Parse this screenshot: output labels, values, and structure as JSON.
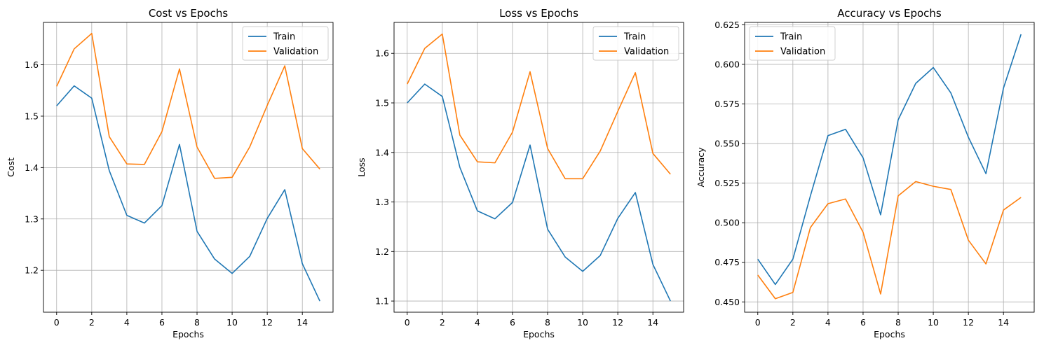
{
  "chart_data": [
    {
      "type": "line",
      "title": "Cost vs Epochs",
      "xlabel": "Epochs",
      "ylabel": "Cost",
      "xlim": [
        -0.75,
        15.75
      ],
      "ylim": [
        1.1185,
        1.6825
      ],
      "xticks": [
        0,
        2,
        4,
        6,
        8,
        10,
        12,
        14
      ],
      "yticks": [
        1.2,
        1.3,
        1.4,
        1.5,
        1.6
      ],
      "ytick_labels": [
        "1.2",
        "1.3",
        "1.4",
        "1.5",
        "1.6"
      ],
      "grid": true,
      "legend": "upper right",
      "x": [
        0,
        1,
        2,
        3,
        4,
        5,
        6,
        7,
        8,
        9,
        10,
        11,
        12,
        13,
        14,
        15
      ],
      "series": [
        {
          "name": "Train",
          "color": "#1f77b4",
          "values": [
            1.52,
            1.559,
            1.535,
            1.394,
            1.307,
            1.292,
            1.326,
            1.445,
            1.276,
            1.222,
            1.194,
            1.227,
            1.301,
            1.357,
            1.213,
            1.14
          ]
        },
        {
          "name": "Validation",
          "color": "#ff7f0e",
          "values": [
            1.558,
            1.631,
            1.661,
            1.46,
            1.407,
            1.406,
            1.47,
            1.592,
            1.44,
            1.379,
            1.381,
            1.44,
            1.521,
            1.598,
            1.437,
            1.397
          ]
        }
      ]
    },
    {
      "type": "line",
      "title": "Loss vs Epochs",
      "xlabel": "Epochs",
      "ylabel": "Loss",
      "xlim": [
        -0.75,
        15.75
      ],
      "ylim": [
        1.0775,
        1.6625
      ],
      "xticks": [
        0,
        2,
        4,
        6,
        8,
        10,
        12,
        14
      ],
      "yticks": [
        1.1,
        1.2,
        1.3,
        1.4,
        1.5,
        1.6
      ],
      "ytick_labels": [
        "1.1",
        "1.2",
        "1.3",
        "1.4",
        "1.5",
        "1.6"
      ],
      "grid": true,
      "legend": "upper right",
      "x": [
        0,
        1,
        2,
        3,
        4,
        5,
        6,
        7,
        8,
        9,
        10,
        11,
        12,
        13,
        14,
        15
      ],
      "series": [
        {
          "name": "Train",
          "color": "#1f77b4",
          "values": [
            1.5,
            1.538,
            1.513,
            1.37,
            1.282,
            1.266,
            1.299,
            1.415,
            1.245,
            1.189,
            1.16,
            1.192,
            1.267,
            1.319,
            1.174,
            1.1
          ]
        },
        {
          "name": "Validation",
          "color": "#ff7f0e",
          "values": [
            1.538,
            1.61,
            1.639,
            1.435,
            1.381,
            1.379,
            1.441,
            1.563,
            1.408,
            1.347,
            1.347,
            1.403,
            1.483,
            1.561,
            1.398,
            1.356
          ]
        }
      ]
    },
    {
      "type": "line",
      "title": "Accuracy vs Epochs",
      "xlabel": "Epochs",
      "ylabel": "Accuracy",
      "xlim": [
        -0.75,
        15.75
      ],
      "ylim": [
        0.4435,
        0.6265
      ],
      "xticks": [
        0,
        2,
        4,
        6,
        8,
        10,
        12,
        14
      ],
      "yticks": [
        0.45,
        0.475,
        0.5,
        0.525,
        0.55,
        0.575,
        0.6,
        0.625
      ],
      "ytick_labels": [
        "0.450",
        "0.475",
        "0.500",
        "0.525",
        "0.550",
        "0.575",
        "0.600",
        "0.625"
      ],
      "grid": true,
      "legend": "upper left",
      "x": [
        0,
        1,
        2,
        3,
        4,
        5,
        6,
        7,
        8,
        9,
        10,
        11,
        12,
        13,
        14,
        15
      ],
      "series": [
        {
          "name": "Train",
          "color": "#1f77b4",
          "values": [
            0.477,
            0.461,
            0.477,
            0.517,
            0.555,
            0.559,
            0.541,
            0.505,
            0.565,
            0.588,
            0.598,
            0.582,
            0.554,
            0.531,
            0.585,
            0.619
          ]
        },
        {
          "name": "Validation",
          "color": "#ff7f0e",
          "values": [
            0.467,
            0.452,
            0.456,
            0.497,
            0.512,
            0.515,
            0.494,
            0.455,
            0.517,
            0.526,
            0.523,
            0.521,
            0.489,
            0.474,
            0.508,
            0.516
          ]
        }
      ]
    }
  ]
}
